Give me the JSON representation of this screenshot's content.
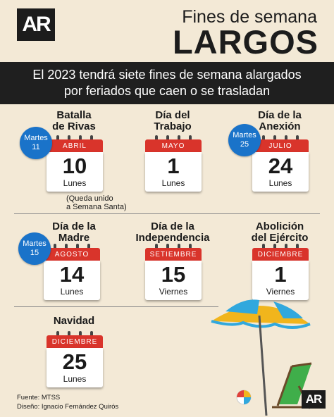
{
  "header": {
    "logo": "AR",
    "title_top": "Fines de semana",
    "title_main": "LARGOS"
  },
  "banner": {
    "line1": "El 2023 tendrá siete fines de semana alargados",
    "line2": "por feriados que caen o se trasladan"
  },
  "holidays": [
    {
      "title1": "Batalla",
      "title2": "de Rivas",
      "month": "ABRIL",
      "day": "10",
      "weekday": "Lunes",
      "badge1": "Martes",
      "badge2": "11"
    },
    {
      "title1": "Día del",
      "title2": "Trabajo",
      "month": "MAYO",
      "day": "1",
      "weekday": "Lunes"
    },
    {
      "title1": "Día de la",
      "title2": "Anexión",
      "month": "JULIO",
      "day": "24",
      "weekday": "Lunes",
      "badge1": "Martes",
      "badge2": "25"
    },
    {
      "title1": "Día de la",
      "title2": "Madre",
      "month": "AGOSTO",
      "day": "14",
      "weekday": "Lunes",
      "badge1": "Martes",
      "badge2": "15"
    },
    {
      "title1": "Día de la",
      "title2": "Independencia",
      "month": "SETIEMBRE",
      "day": "15",
      "weekday": "Viernes"
    },
    {
      "title1": "Abolición",
      "title2": "del Ejército",
      "month": "DICIEMBRE",
      "day": "1",
      "weekday": "Viernes"
    },
    {
      "title1": "Navidad",
      "month": "DICIEMBRE",
      "day": "25",
      "weekday": "Lunes"
    }
  ],
  "note": {
    "line1": "(Queda unido",
    "line2": "a Semana Santa)"
  },
  "footer": {
    "source": "Fuente: MTSS",
    "design": "Diseño: Ignacio Fernández Quirós"
  },
  "logo_small": "AR",
  "colors": {
    "background": "#f3e9d6",
    "calendar_red": "#d9342b",
    "badge_blue": "#1a73c9",
    "banner": "#1f1f1f"
  }
}
